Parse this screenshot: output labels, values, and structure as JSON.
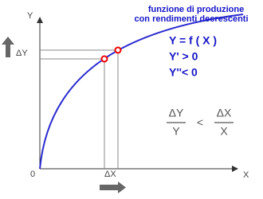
{
  "title": {
    "line1": "funzione di produzione",
    "line2": "con rendimenti decrescenti"
  },
  "axes": {
    "y": "Y",
    "x": "X",
    "origin": "0",
    "dy": "ΔY",
    "dx": "ΔX"
  },
  "equations": [
    "Y = f ( X )",
    "Y' > 0",
    "Y''< 0"
  ],
  "inequality": {
    "left_num": "ΔY",
    "left_den": "Y",
    "op": "<",
    "right_num": "ΔX",
    "right_den": "X"
  }
}
